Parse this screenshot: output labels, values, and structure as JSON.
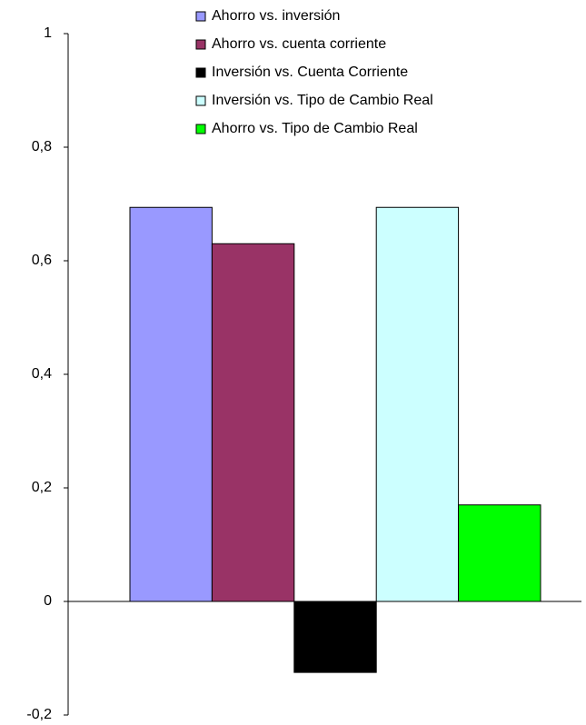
{
  "chart_data": {
    "type": "bar",
    "categories": [
      null
    ],
    "series": [
      {
        "name": "Ahorro vs. inversión",
        "color": "#9999ff",
        "values": [
          0.694
        ]
      },
      {
        "name": "Ahorro vs. cuenta corriente",
        "color": "#993366",
        "values": [
          0.63
        ]
      },
      {
        "name": "Inversión vs. Cuenta Corriente",
        "color": "#000000",
        "values": [
          -0.125
        ]
      },
      {
        "name": "Inversión vs. Tipo de Cambio Real",
        "color": "#ccffff",
        "values": [
          0.694
        ]
      },
      {
        "name": "Ahorro vs. Tipo de Cambio Real",
        "color": "#00ff00",
        "values": [
          0.17
        ]
      }
    ],
    "ylim": [
      -0.2,
      1
    ],
    "yticks": [
      {
        "value": -0.2,
        "label": "-0,2"
      },
      0,
      {
        "value": 0.2,
        "label": "0,2"
      },
      {
        "value": 0.4,
        "label": "0,4"
      },
      {
        "value": 0.6,
        "label": "0,6"
      },
      {
        "value": 0.8,
        "label": "0,8"
      },
      1
    ],
    "legend": "top"
  }
}
